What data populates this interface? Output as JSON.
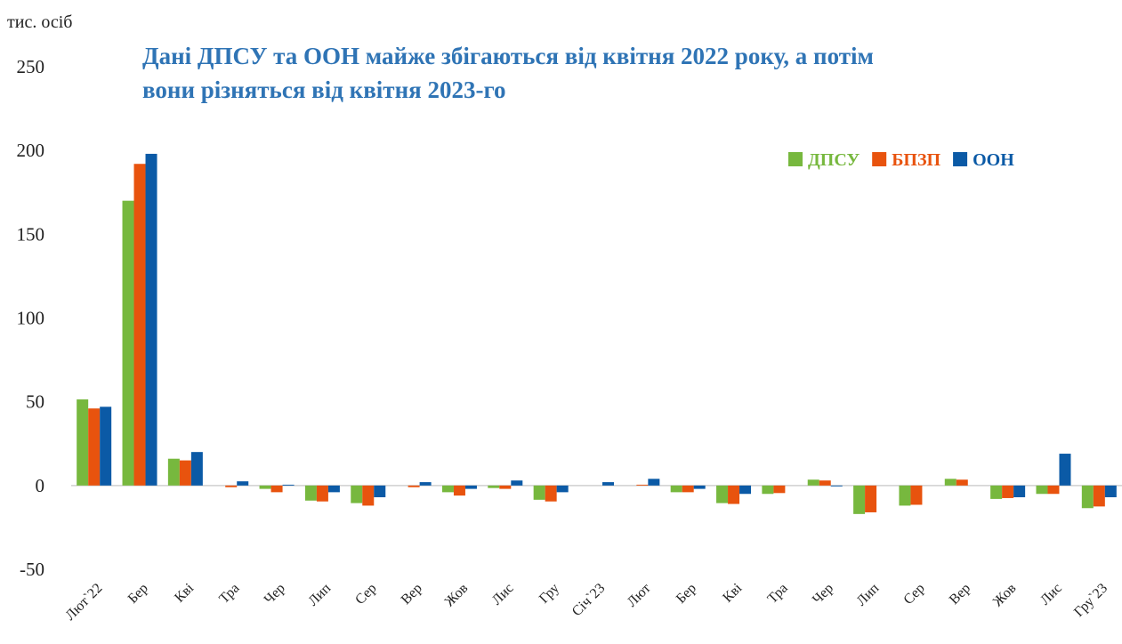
{
  "chart_data": {
    "type": "bar",
    "title": "Дані ДПСУ та ООН майже збігаються від квітня 2022 року, а потім вони різняться від квітня 2023-го",
    "y_label": "тис. осіб",
    "categories": [
      "Лют`22",
      "Бер",
      "Кві",
      "Тра",
      "Чер",
      "Лип",
      "Сер",
      "Вер",
      "Жов",
      "Лис",
      "Гру",
      "Січ`23",
      "Лют",
      "Бер",
      "Кві",
      "Тра",
      "Чер",
      "Лип",
      "Сер",
      "Вер",
      "Жов",
      "Лис",
      "Гру`23"
    ],
    "series": [
      {
        "name": "ДПСУ",
        "color": "#77b83e",
        "values": [
          51.4,
          170,
          16,
          0,
          -2,
          -9,
          -10.5,
          0,
          -4,
          -1.5,
          -8.5,
          0,
          0,
          -4,
          -10.5,
          -5,
          3.5,
          -17,
          -12,
          4,
          -8,
          -5,
          -13.5
        ]
      },
      {
        "name": "БПЗП",
        "color": "#e8530e",
        "values": [
          46,
          192,
          15,
          -1,
          -4,
          -9.5,
          -12,
          -1,
          -6,
          -2,
          -9.5,
          0,
          0.5,
          -4,
          -11,
          -4.5,
          3,
          -16,
          -11.5,
          3.5,
          -7.5,
          -5,
          -12.5
        ]
      },
      {
        "name": "ООН",
        "color": "#0b5aa6",
        "values": [
          47,
          198,
          20,
          2.5,
          0.5,
          -4,
          -7,
          2,
          -2,
          3,
          -4,
          2,
          4,
          -2,
          -5,
          0,
          -0.5,
          0,
          0,
          0,
          -7,
          19,
          -7
        ]
      }
    ],
    "ylim": [
      -50,
      250
    ],
    "yticks": [
      -50,
      0,
      50,
      100,
      150,
      200,
      250
    ],
    "legend": "top-right",
    "grid": false
  }
}
